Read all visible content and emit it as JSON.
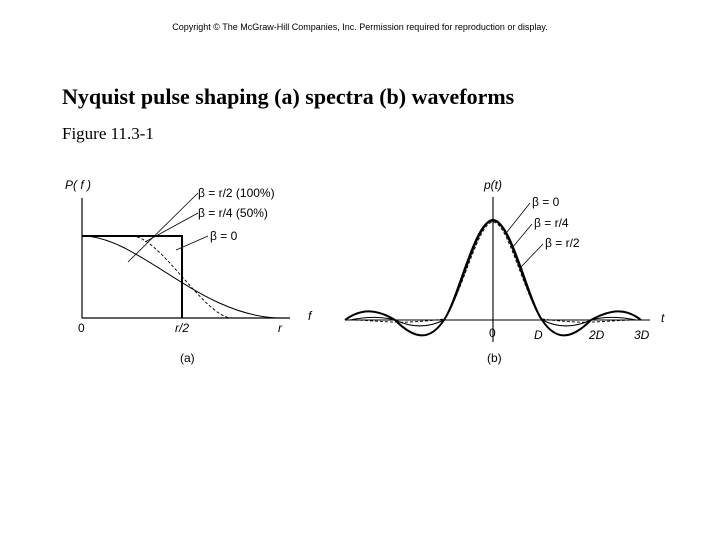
{
  "header": {
    "copyright": "Copyright © The McGraw-Hill Companies, Inc.  Permission required for reproduction or display.",
    "title": "Nyquist pulse shaping (a) spectra (b) waveforms",
    "figure_number": "Figure 11.3-1"
  },
  "panel_a": {
    "y_axis_label": "P( f )",
    "x_axis_label": "f",
    "tick_labels": [
      "0",
      "r/2",
      "r"
    ],
    "curve_labels": [
      "β = r/2 (100%)",
      "β = r/4 (50%)",
      "β = 0"
    ],
    "caption": "(a)"
  },
  "panel_b": {
    "y_axis_label": "p(t)",
    "x_axis_label": "t",
    "tick_labels": [
      "0",
      "D",
      "2D",
      "3D"
    ],
    "curve_labels": [
      "β = 0",
      "β = r/4",
      "β = r/2"
    ],
    "caption": "(b)"
  }
}
